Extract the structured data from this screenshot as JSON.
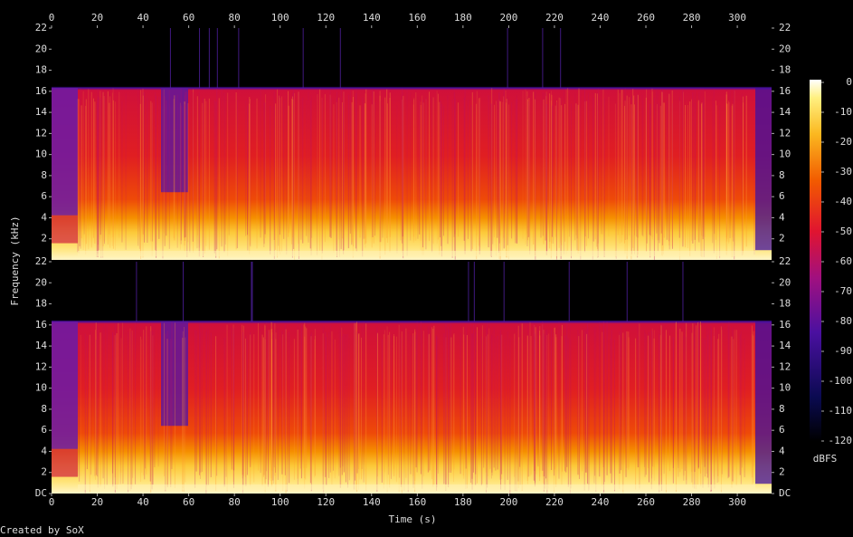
{
  "chart_data": {
    "type": "spectrogram",
    "x_label": "Time (s)",
    "y_label": "Frequency (kHz)",
    "xlim": [
      0,
      315
    ],
    "xticks": [
      0,
      20,
      40,
      60,
      80,
      100,
      120,
      140,
      160,
      180,
      200,
      220,
      240,
      260,
      280,
      300
    ],
    "channels": [
      {
        "ylim": [
          0,
          22
        ],
        "yticks": [
          2,
          4,
          6,
          8,
          10,
          12,
          14,
          16,
          18,
          20,
          22
        ]
      },
      {
        "ylim": [
          0,
          22
        ],
        "yticks": [
          {
            "value": 0,
            "label": "DC"
          },
          2,
          4,
          6,
          8,
          10,
          12,
          14,
          16,
          18,
          20,
          22
        ]
      }
    ],
    "colorbar": {
      "label": "dBFS",
      "lim": [
        -120,
        0
      ],
      "ticks": [
        0,
        -10,
        -20,
        -30,
        -40,
        -50,
        -60,
        -70,
        -80,
        -90,
        -100,
        -110,
        -120
      ]
    },
    "footer": "Created by SoX"
  }
}
